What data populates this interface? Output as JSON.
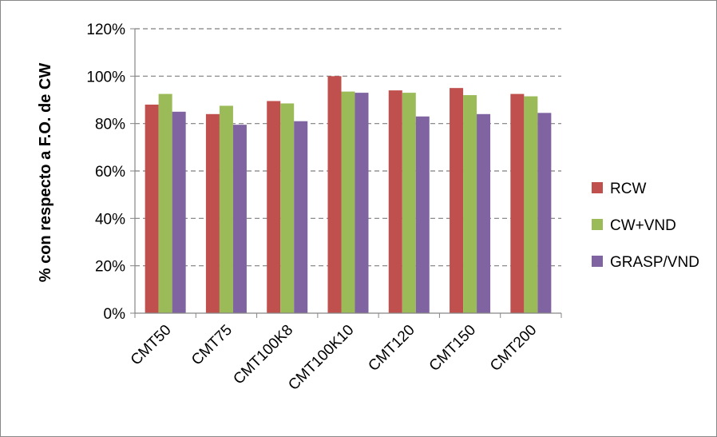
{
  "chart_data": {
    "type": "bar",
    "title": "",
    "xlabel": "",
    "ylabel": "% con respecto a F.O. de CW",
    "categories": [
      "CMT50",
      "CMT75",
      "CMT100K8",
      "CMT100K10",
      "CMT120",
      "CMT150",
      "CMT200"
    ],
    "series": [
      {
        "name": "RCW",
        "color": "#c0504d",
        "values": [
          88,
          84,
          89.5,
          100,
          94,
          95,
          92.5
        ]
      },
      {
        "name": "CW+VND",
        "color": "#9bbb59",
        "values": [
          92.5,
          87.5,
          88.5,
          93.5,
          93,
          92,
          91.5
        ]
      },
      {
        "name": "GRASP/VND",
        "color": "#8064a2",
        "values": [
          85,
          79.5,
          81,
          93,
          83,
          84,
          84.5
        ]
      }
    ],
    "ylim": [
      0,
      120
    ],
    "yticks": [
      "0%",
      "20%",
      "40%",
      "60%",
      "80%",
      "100%",
      "120%"
    ],
    "ytick_values": [
      0,
      20,
      40,
      60,
      80,
      100,
      120
    ],
    "grid": "horizontal dashed",
    "legend": "right"
  }
}
